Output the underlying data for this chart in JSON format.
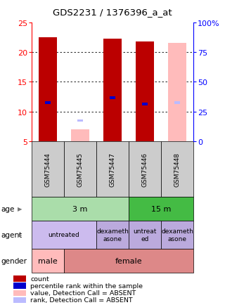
{
  "title": "GDS2231 / 1376396_a_at",
  "samples": [
    "GSM75444",
    "GSM75445",
    "GSM75447",
    "GSM75446",
    "GSM75448"
  ],
  "ylim_left": [
    5,
    25
  ],
  "ylim_right": [
    0,
    100
  ],
  "yticks_left": [
    5,
    10,
    15,
    20,
    25
  ],
  "yticks_right": [
    0,
    25,
    50,
    75,
    100
  ],
  "bar_data": [
    {
      "x": 0,
      "count_val": 22.5,
      "rank_val": 11.5,
      "absent": false
    },
    {
      "x": 1,
      "count_val": 7.0,
      "rank_val": 8.5,
      "absent": true
    },
    {
      "x": 2,
      "count_val": 22.3,
      "rank_val": 12.3,
      "absent": false
    },
    {
      "x": 3,
      "count_val": 21.8,
      "rank_val": 11.3,
      "absent": false
    },
    {
      "x": 4,
      "count_val": 21.5,
      "rank_val": 11.5,
      "absent": true
    }
  ],
  "count_color": "#bb0000",
  "rank_color": "#0000cc",
  "absent_count_color": "#ffbbbb",
  "absent_rank_color": "#bbbbff",
  "bar_width": 0.55,
  "rank_bar_width": 0.18,
  "sample_box_color": "#cccccc",
  "age_row": {
    "label": "age",
    "groups": [
      {
        "cols": [
          0,
          1,
          2
        ],
        "text": "3 m",
        "color": "#aaddaa"
      },
      {
        "cols": [
          3,
          4
        ],
        "text": "15 m",
        "color": "#44bb44"
      }
    ]
  },
  "agent_row": {
    "label": "agent",
    "groups": [
      {
        "cols": [
          0,
          1
        ],
        "text": "untreated",
        "color": "#ccbbee"
      },
      {
        "cols": [
          2
        ],
        "text": "dexameth\nasone",
        "color": "#bbaadd"
      },
      {
        "cols": [
          3
        ],
        "text": "untreat\ned",
        "color": "#bbaadd"
      },
      {
        "cols": [
          4
        ],
        "text": "dexameth\nasone",
        "color": "#bbaadd"
      }
    ]
  },
  "gender_row": {
    "label": "gender",
    "groups": [
      {
        "cols": [
          0
        ],
        "text": "male",
        "color": "#ffbbbb"
      },
      {
        "cols": [
          1,
          2,
          3,
          4
        ],
        "text": "female",
        "color": "#dd8888"
      }
    ]
  },
  "legend_items": [
    {
      "color": "#bb0000",
      "label": "count"
    },
    {
      "color": "#0000cc",
      "label": "percentile rank within the sample"
    },
    {
      "color": "#ffbbbb",
      "label": "value, Detection Call = ABSENT"
    },
    {
      "color": "#bbbbff",
      "label": "rank, Detection Call = ABSENT"
    }
  ]
}
